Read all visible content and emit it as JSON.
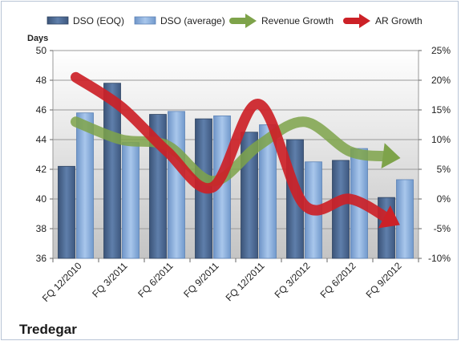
{
  "company": "Tredegar",
  "chart_data": {
    "type": "bar",
    "categories": [
      "FQ 12/2010",
      "FQ 3/2011",
      "FQ 6/2011",
      "FQ 9/2011",
      "FQ 12/2011",
      "FQ 3/2012",
      "FQ 6/2012",
      "FQ 9/2012"
    ],
    "ylabel": "Days",
    "ylim": [
      36,
      50
    ],
    "y_ticks": [
      "36",
      "38",
      "40",
      "42",
      "44",
      "46",
      "48",
      "50"
    ],
    "y2lim": [
      -10,
      25
    ],
    "y2_ticks": [
      "-10%",
      "-5%",
      "0%",
      "5%",
      "10%",
      "15%",
      "20%",
      "25%"
    ],
    "legend_position": "top",
    "series": [
      {
        "name": "DSO (EOQ)",
        "kind": "bar",
        "color": "#4f6d98",
        "values": [
          42.2,
          47.8,
          45.7,
          45.4,
          44.5,
          44.0,
          42.6,
          40.1
        ]
      },
      {
        "name": "DSO (average)",
        "kind": "bar",
        "color": "#8fb2df",
        "values": [
          45.8,
          43.8,
          45.9,
          45.6,
          45.0,
          42.5,
          43.4,
          41.3
        ]
      },
      {
        "name": "Revenue Growth",
        "kind": "arrow-line",
        "axis": "right",
        "color": "#7ea34a",
        "values": [
          13,
          10,
          9,
          3,
          9,
          13,
          8,
          7
        ]
      },
      {
        "name": "AR Growth",
        "kind": "arrow-line",
        "axis": "right",
        "color": "#cc2127",
        "values": [
          20.5,
          15.5,
          8,
          2,
          16,
          -1,
          0,
          -4
        ]
      }
    ]
  }
}
